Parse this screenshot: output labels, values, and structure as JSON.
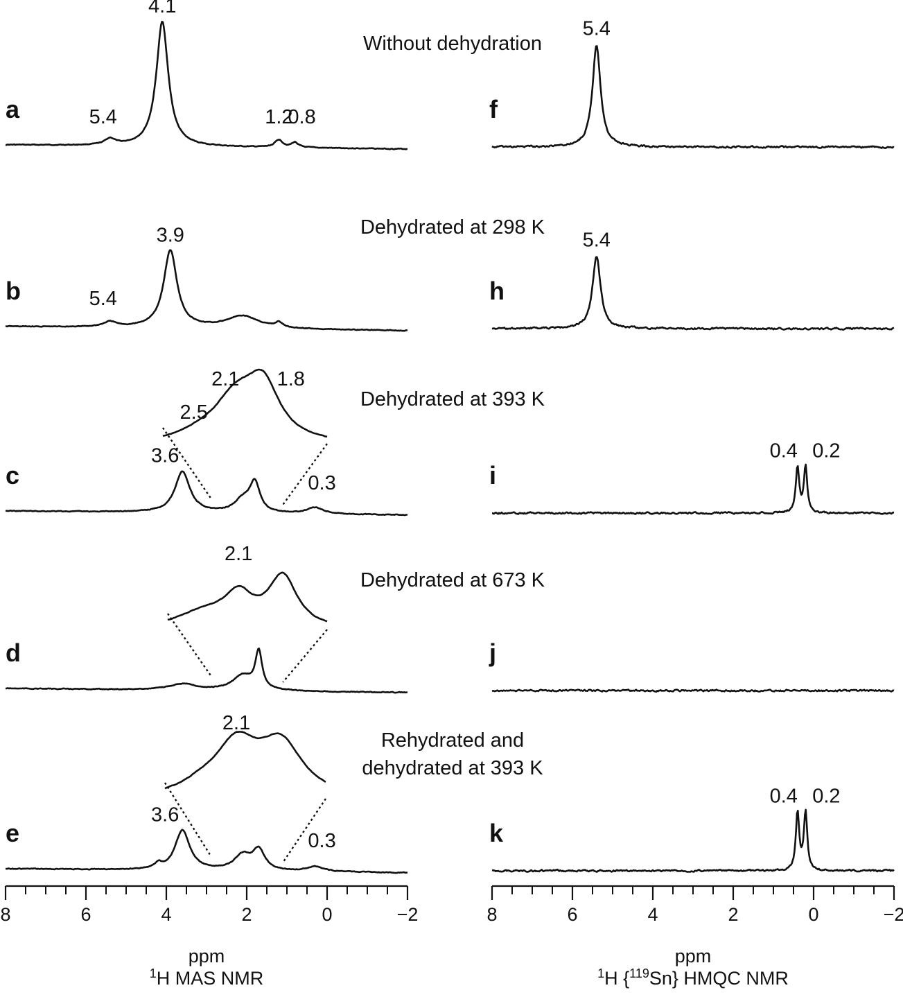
{
  "chart_data": [
    {
      "type": "line",
      "xlabel": "ppm",
      "title": "1H MAS NMR",
      "xlim": [
        8,
        -2
      ],
      "xticks": [
        "8",
        "6",
        "4",
        "2",
        "0",
        "−2"
      ],
      "panels": [
        {
          "letter": "a",
          "condition": [
            "Without dehydration"
          ],
          "peaks": [
            {
              "ppm": 5.4,
              "h": 0.05,
              "w": 0.15,
              "label": "5.4"
            },
            {
              "ppm": 4.1,
              "h": 1.0,
              "w": 0.18,
              "label": "4.1"
            },
            {
              "ppm": 1.2,
              "h": 0.06,
              "w": 0.12,
              "label": "1.2"
            },
            {
              "ppm": 0.8,
              "h": 0.04,
              "w": 0.1,
              "label": "0.8"
            }
          ]
        },
        {
          "letter": "b",
          "condition": [
            "Dehydrated at 298 K"
          ],
          "peaks": [
            {
              "ppm": 5.4,
              "h": 0.04,
              "w": 0.2,
              "label": "5.4"
            },
            {
              "ppm": 3.9,
              "h": 0.62,
              "w": 0.2,
              "label": "3.9"
            },
            {
              "ppm": 2.1,
              "h": 0.1,
              "w": 0.5
            },
            {
              "ppm": 1.2,
              "h": 0.04,
              "w": 0.1
            }
          ]
        },
        {
          "letter": "c",
          "condition": [
            "Dehydrated at 393 K"
          ],
          "peaks": [
            {
              "ppm": 3.6,
              "h": 0.33,
              "w": 0.22,
              "label": "3.6"
            },
            {
              "ppm": 2.1,
              "h": 0.1,
              "w": 0.25
            },
            {
              "ppm": 1.8,
              "h": 0.23,
              "w": 0.15
            },
            {
              "ppm": 0.3,
              "h": 0.05,
              "w": 0.25,
              "label": "0.3"
            }
          ],
          "inset": {
            "ppm_range": [
              2.9,
              1.1
            ],
            "peaks": [
              {
                "ppm": 2.5,
                "h": 0.1,
                "w": 0.3,
                "label": "2.5"
              },
              {
                "ppm": 2.1,
                "h": 0.8,
                "w": 0.3,
                "label": "2.1"
              },
              {
                "ppm": 1.8,
                "h": 0.95,
                "w": 0.22,
                "label": "1.8"
              }
            ]
          }
        },
        {
          "letter": "d",
          "condition": [
            "Dehydrated at 673 K"
          ],
          "peaks": [
            {
              "ppm": 3.6,
              "h": 0.05,
              "w": 0.4
            },
            {
              "ppm": 2.1,
              "h": 0.12,
              "w": 0.3
            },
            {
              "ppm": 1.7,
              "h": 0.3,
              "w": 0.1
            }
          ],
          "inset": {
            "ppm_range": [
              2.9,
              1.1
            ],
            "peaks": [
              {
                "ppm": 2.5,
                "h": 0.3,
                "w": 0.4
              },
              {
                "ppm": 2.1,
                "h": 0.55,
                "w": 0.2,
                "label": "2.1"
              },
              {
                "ppm": 1.6,
                "h": 0.95,
                "w": 0.2
              }
            ]
          }
        },
        {
          "letter": "e",
          "condition": [
            "Rehydrated and",
            "dehydrated at 393 K"
          ],
          "peaks": [
            {
              "ppm": 3.6,
              "h": 0.32,
              "w": 0.22,
              "label": "3.6"
            },
            {
              "ppm": 4.2,
              "h": 0.04,
              "w": 0.1
            },
            {
              "ppm": 2.1,
              "h": 0.12,
              "w": 0.25
            },
            {
              "ppm": 1.7,
              "h": 0.16,
              "w": 0.18
            },
            {
              "ppm": 0.3,
              "h": 0.04,
              "w": 0.25,
              "label": "0.3"
            }
          ],
          "inset": {
            "ppm_range": [
              2.9,
              1.1
            ],
            "peaks": [
              {
                "ppm": 2.5,
                "h": 0.15,
                "w": 0.3
              },
              {
                "ppm": 2.1,
                "h": 0.95,
                "w": 0.3,
                "label": "2.1"
              },
              {
                "ppm": 1.6,
                "h": 0.95,
                "w": 0.3
              }
            ]
          }
        }
      ]
    },
    {
      "type": "line",
      "xlabel": "ppm",
      "title": "1H {119Sn} HMQC NMR",
      "xlim": [
        8,
        -2
      ],
      "xticks": [
        "8",
        "6",
        "4",
        "2",
        "0",
        "−2"
      ],
      "panels": [
        {
          "letter": "f",
          "peaks": [
            {
              "ppm": 5.4,
              "h": 0.82,
              "w": 0.12,
              "label": "5.4"
            }
          ]
        },
        {
          "letter": "h",
          "peaks": [
            {
              "ppm": 5.4,
              "h": 0.58,
              "w": 0.12,
              "label": "5.4"
            }
          ]
        },
        {
          "letter": "i",
          "peaks": [
            {
              "ppm": 0.4,
              "h": 0.37,
              "w": 0.05,
              "label": "0.4"
            },
            {
              "ppm": 0.2,
              "h": 0.37,
              "w": 0.05,
              "label": "0.2"
            }
          ]
        },
        {
          "letter": "j",
          "peaks": []
        },
        {
          "letter": "k",
          "peaks": [
            {
              "ppm": 0.4,
              "h": 0.47,
              "w": 0.05,
              "label": "0.4"
            },
            {
              "ppm": 0.2,
              "h": 0.47,
              "w": 0.05,
              "label": "0.2"
            }
          ]
        }
      ]
    }
  ]
}
